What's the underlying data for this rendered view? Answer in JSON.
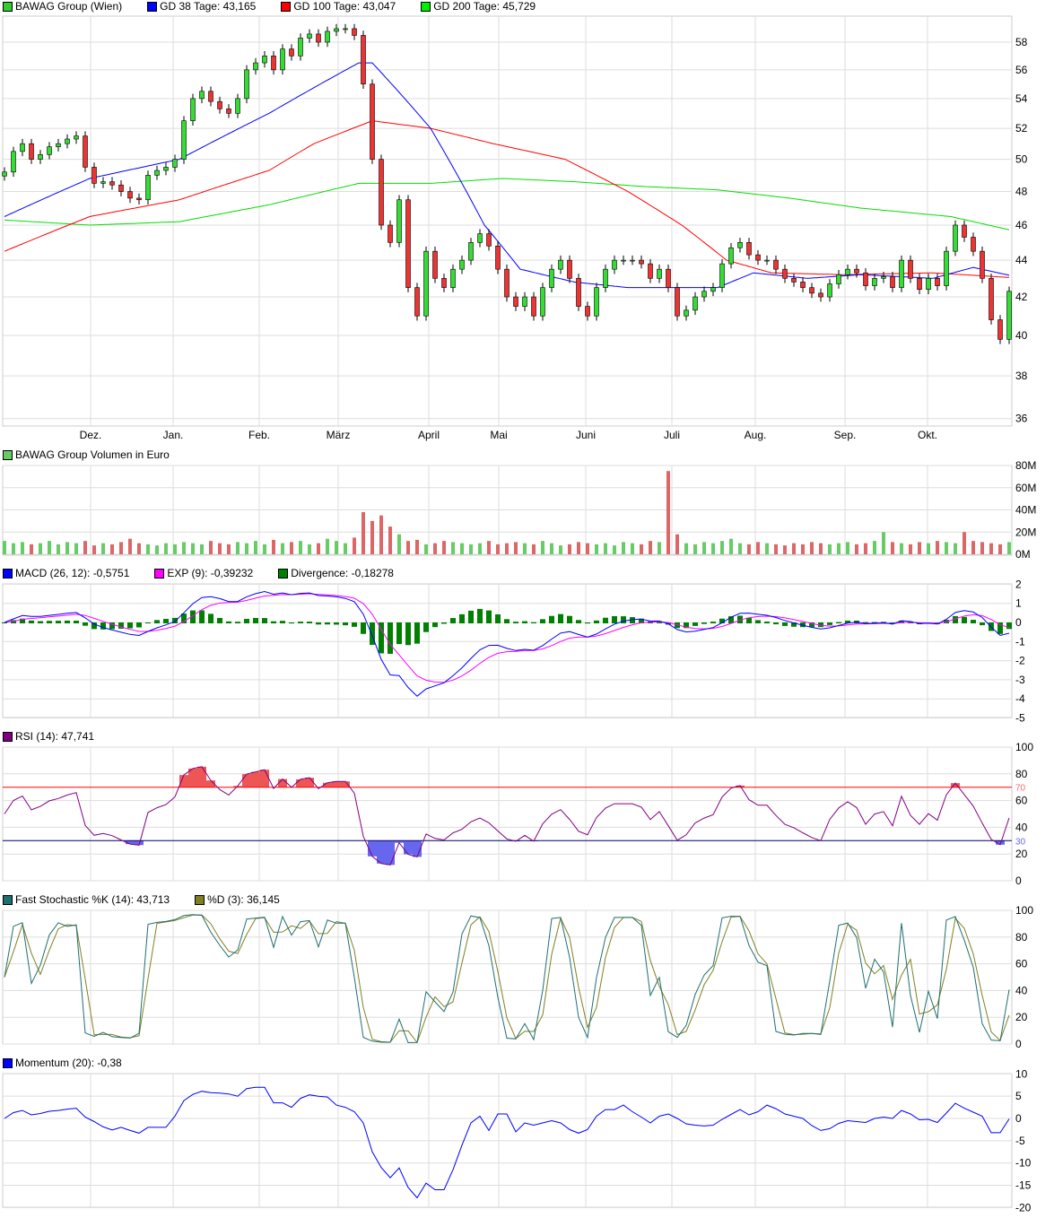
{
  "legends": {
    "price": [
      {
        "label": "BAWAG Group (Wien)",
        "color": "#33cc33"
      },
      {
        "label": "GD 38 Tage: 43,165",
        "color": "#0000ff"
      },
      {
        "label": "GD 100 Tage: 43,047",
        "color": "#ff0000"
      },
      {
        "label": "GD 200 Tage: 45,729",
        "color": "#00ee00"
      }
    ],
    "volume": [
      {
        "label": "BAWAG Group Volumen in Euro",
        "color": "#66cc66"
      }
    ],
    "macd": [
      {
        "label": "MACD (26, 12): -0,5751",
        "color": "#0000ff"
      },
      {
        "label": "EXP (9): -0,39232",
        "color": "#ff00ff"
      },
      {
        "label": "Divergence: -0,18278",
        "color": "#008000"
      }
    ],
    "rsi": [
      {
        "label": "RSI (14): 47,741",
        "color": "#800080"
      }
    ],
    "stoch": [
      {
        "label": "Fast Stochastic %K (14): 43,713",
        "color": "#1f6f6f"
      },
      {
        "label": "%D (3): 36,145",
        "color": "#808020"
      }
    ],
    "momentum": [
      {
        "label": "Momentum (20): -0,38",
        "color": "#0000ff"
      }
    ]
  },
  "chart_data": {
    "type": "candlestick-with-indicators",
    "price_scale": "log",
    "price_ylim": [
      36,
      58
    ],
    "price_ticks": [
      36,
      38,
      40,
      42,
      44,
      46,
      48,
      50,
      52,
      54,
      56,
      58
    ],
    "months": [
      {
        "label": "Dez.",
        "i": 9.6
      },
      {
        "label": "Jan.",
        "i": 18.8
      },
      {
        "label": "Feb.",
        "i": 28.4
      },
      {
        "label": "März",
        "i": 37.2
      },
      {
        "label": "April",
        "i": 47.3
      },
      {
        "label": "Mai",
        "i": 55.1
      },
      {
        "label": "Juni",
        "i": 64.8
      },
      {
        "label": "Juli",
        "i": 74.4
      },
      {
        "label": "Aug.",
        "i": 83.7
      },
      {
        "label": "Sep.",
        "i": 93.7
      },
      {
        "label": "Okt.",
        "i": 102.9
      }
    ],
    "close": [
      49.2,
      50.5,
      51,
      50,
      50.3,
      50.8,
      51,
      51.3,
      51.5,
      49.5,
      48.5,
      48.6,
      48.4,
      48,
      47.6,
      47.5,
      49,
      49.3,
      49.5,
      50,
      52.5,
      54,
      54.5,
      53.8,
      53.3,
      53,
      54,
      56,
      56.5,
      57,
      56,
      57.5,
      57,
      58.3,
      58.6,
      58,
      58.8,
      59,
      59,
      58.5,
      55,
      50,
      46,
      45,
      47.5,
      42.5,
      41,
      44.5,
      43,
      42.5,
      43.5,
      44,
      45,
      45.5,
      44.8,
      43.5,
      42,
      41.5,
      42,
      41,
      42.5,
      43.5,
      44,
      43,
      41.5,
      41,
      42.5,
      43.5,
      44,
      44,
      44,
      43.8,
      43,
      43.5,
      42.5,
      41,
      41.3,
      42,
      42.3,
      42.5,
      43.8,
      44.7,
      45,
      44.3,
      44,
      44,
      43.5,
      43,
      42.8,
      42.5,
      42.2,
      42,
      42.7,
      43.2,
      43.5,
      43.3,
      42.6,
      43,
      43.1,
      42.5,
      44,
      43,
      42.4,
      43,
      42.6,
      44.5,
      46,
      45.3,
      44.5,
      43,
      40.8,
      39.8,
      42.3
    ],
    "gd38": [
      [
        0,
        46.5
      ],
      [
        9.5,
        48.8
      ],
      [
        19.5,
        50
      ],
      [
        29.5,
        53
      ],
      [
        39.5,
        56.5
      ],
      [
        41,
        56.5
      ],
      [
        47.5,
        52
      ],
      [
        53.5,
        46
      ],
      [
        57.5,
        43.5
      ],
      [
        63.5,
        42.8
      ],
      [
        69.5,
        42.5
      ],
      [
        75.5,
        42.5
      ],
      [
        79.5,
        42.5
      ],
      [
        83.5,
        43.3
      ],
      [
        89.5,
        43
      ],
      [
        95.5,
        43.2
      ],
      [
        103.5,
        43
      ],
      [
        108,
        43.6
      ],
      [
        112,
        43.17
      ]
    ],
    "gd100": [
      [
        0,
        44.5
      ],
      [
        9.5,
        46.5
      ],
      [
        19.5,
        47.5
      ],
      [
        29.5,
        49.3
      ],
      [
        34.5,
        51
      ],
      [
        41,
        52.5
      ],
      [
        47.5,
        52
      ],
      [
        54.5,
        51
      ],
      [
        62.5,
        50
      ],
      [
        69.5,
        48
      ],
      [
        75.5,
        46
      ],
      [
        80.5,
        44
      ],
      [
        85.5,
        43.3
      ],
      [
        93.5,
        43.2
      ],
      [
        103.5,
        43.3
      ],
      [
        112,
        43.05
      ]
    ],
    "gd200": [
      [
        0,
        46.3
      ],
      [
        9.5,
        46
      ],
      [
        19.5,
        46.2
      ],
      [
        29.5,
        47.2
      ],
      [
        39.5,
        48.5
      ],
      [
        47.5,
        48.5
      ],
      [
        55.5,
        48.8
      ],
      [
        63.5,
        48.6
      ],
      [
        71.5,
        48.3
      ],
      [
        79.5,
        48.1
      ],
      [
        87.5,
        47.6
      ],
      [
        95.5,
        47
      ],
      [
        105.5,
        46.5
      ],
      [
        112,
        45.73
      ]
    ],
    "volume_m": [
      12,
      10,
      11,
      9,
      10,
      12,
      9,
      11,
      10,
      12,
      8,
      10,
      9,
      11,
      14,
      10,
      9,
      8,
      10,
      9,
      11,
      10,
      9,
      12,
      10,
      9,
      11,
      10,
      12,
      9,
      13,
      10,
      11,
      12,
      9,
      10,
      14,
      12,
      10,
      15,
      38,
      30,
      35,
      25,
      18,
      12,
      13,
      9,
      10,
      12,
      11,
      10,
      9,
      10,
      12,
      9,
      10,
      11,
      10,
      9,
      12,
      10,
      8,
      9,
      11,
      10,
      9,
      10,
      8,
      11,
      10,
      9,
      12,
      11,
      75,
      18,
      10,
      9,
      11,
      10,
      12,
      14,
      10,
      9,
      11,
      10,
      9,
      8,
      10,
      9,
      11,
      10,
      9,
      10,
      11,
      9,
      10,
      12,
      20,
      11,
      10,
      9,
      11,
      10,
      12,
      11,
      10,
      20,
      12,
      11,
      10,
      9,
      11
    ],
    "volume_ticks": [
      "0M",
      "20M",
      "40M",
      "60M",
      "80M"
    ],
    "macd_ticks": [
      -5,
      -4,
      -3,
      -2,
      -1,
      0,
      1,
      2
    ],
    "rsi_ticks": [
      0,
      20,
      40,
      60,
      80,
      100
    ],
    "rsi_levels": [
      "70",
      "30"
    ],
    "stoch_ticks": [
      0,
      20,
      40,
      60,
      80,
      100
    ],
    "mom_ticks": [
      -20,
      -15,
      -10,
      -5,
      0,
      5,
      10
    ]
  }
}
